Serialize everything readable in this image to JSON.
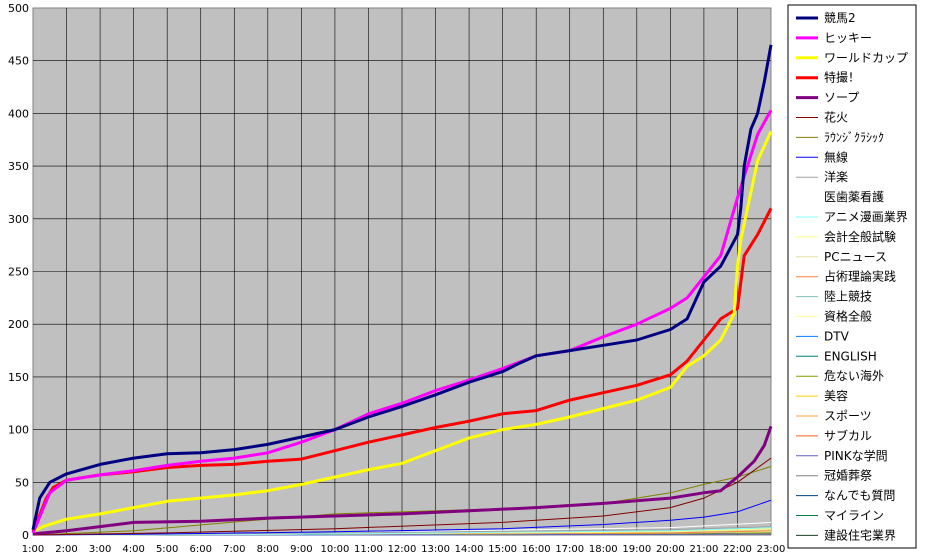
{
  "chart_data": {
    "type": "line",
    "title": "",
    "xlabel": "",
    "ylabel": "",
    "ylim": [
      0,
      500
    ],
    "yticks": [
      0,
      50,
      100,
      150,
      200,
      250,
      300,
      350,
      400,
      450,
      500
    ],
    "xlim": [
      1,
      23
    ],
    "xticks": [
      "1:00",
      "2:00",
      "3:00",
      "4:00",
      "5:00",
      "6:00",
      "7:00",
      "8:00",
      "9:00",
      "10:00",
      "11:00",
      "12:00",
      "13:00",
      "14:00",
      "15:00",
      "16:00",
      "17:00",
      "18:00",
      "19:00",
      "20:00",
      "21:00",
      "22:00",
      "23:00"
    ],
    "grid": true,
    "plot_background": "#c0c0c0",
    "legend_position": "right",
    "series": [
      {
        "name": "競馬2",
        "color": "#000080",
        "bold": true,
        "points": [
          [
            1,
            5
          ],
          [
            1.2,
            35
          ],
          [
            1.5,
            50
          ],
          [
            2,
            58
          ],
          [
            3,
            67
          ],
          [
            4,
            73
          ],
          [
            5,
            77
          ],
          [
            6,
            78
          ],
          [
            7,
            81
          ],
          [
            8,
            86
          ],
          [
            9,
            93
          ],
          [
            10,
            100
          ],
          [
            11,
            112
          ],
          [
            12,
            122
          ],
          [
            13,
            133
          ],
          [
            14,
            145
          ],
          [
            15,
            155
          ],
          [
            15.5,
            163
          ],
          [
            16,
            170
          ],
          [
            17,
            175
          ],
          [
            18,
            180
          ],
          [
            19,
            185
          ],
          [
            20,
            195
          ],
          [
            20.5,
            205
          ],
          [
            21,
            240
          ],
          [
            21.5,
            255
          ],
          [
            22,
            285
          ],
          [
            22.1,
            310
          ],
          [
            22.2,
            350
          ],
          [
            22.4,
            385
          ],
          [
            22.6,
            400
          ],
          [
            22.8,
            430
          ],
          [
            23,
            465
          ]
        ]
      },
      {
        "name": "ヒッキー",
        "color": "#ff00ff",
        "bold": true,
        "points": [
          [
            1,
            2
          ],
          [
            1.5,
            40
          ],
          [
            2,
            52
          ],
          [
            3,
            57
          ],
          [
            4,
            61
          ],
          [
            5,
            66
          ],
          [
            6,
            70
          ],
          [
            7,
            73
          ],
          [
            8,
            78
          ],
          [
            9,
            88
          ],
          [
            10,
            100
          ],
          [
            11,
            115
          ],
          [
            12,
            125
          ],
          [
            13,
            137
          ],
          [
            14,
            147
          ],
          [
            15,
            158
          ],
          [
            16,
            170
          ],
          [
            17,
            175
          ],
          [
            18,
            188
          ],
          [
            19,
            200
          ],
          [
            20,
            215
          ],
          [
            20.5,
            225
          ],
          [
            21,
            245
          ],
          [
            21.5,
            265
          ],
          [
            22,
            320
          ],
          [
            22.3,
            350
          ],
          [
            22.6,
            380
          ],
          [
            23,
            403
          ]
        ]
      },
      {
        "name": "ワールドカップ",
        "color": "#ffff00",
        "bold": true,
        "points": [
          [
            1,
            3
          ],
          [
            1.3,
            8
          ],
          [
            2,
            15
          ],
          [
            3,
            20
          ],
          [
            4,
            26
          ],
          [
            5,
            32
          ],
          [
            6,
            35
          ],
          [
            7,
            38
          ],
          [
            8,
            42
          ],
          [
            9,
            48
          ],
          [
            10,
            55
          ],
          [
            11,
            62
          ],
          [
            12,
            68
          ],
          [
            13,
            80
          ],
          [
            14,
            92
          ],
          [
            15,
            100
          ],
          [
            16,
            105
          ],
          [
            17,
            112
          ],
          [
            18,
            120
          ],
          [
            19,
            128
          ],
          [
            20,
            140
          ],
          [
            20.5,
            160
          ],
          [
            21,
            170
          ],
          [
            21.5,
            185
          ],
          [
            21.9,
            210
          ],
          [
            22,
            255
          ],
          [
            22.1,
            280
          ],
          [
            22.3,
            310
          ],
          [
            22.6,
            355
          ],
          [
            23,
            383
          ]
        ]
      },
      {
        "name": "特撮！",
        "color": "#ff0000",
        "bold": true,
        "points": [
          [
            1,
            3
          ],
          [
            1.4,
            35
          ],
          [
            1.6,
            45
          ],
          [
            2,
            52
          ],
          [
            3,
            57
          ],
          [
            4,
            60
          ],
          [
            5,
            64
          ],
          [
            6,
            66
          ],
          [
            7,
            67
          ],
          [
            8,
            70
          ],
          [
            9,
            72
          ],
          [
            10,
            80
          ],
          [
            11,
            88
          ],
          [
            12,
            95
          ],
          [
            13,
            102
          ],
          [
            14,
            108
          ],
          [
            15,
            115
          ],
          [
            16,
            118
          ],
          [
            17,
            128
          ],
          [
            18,
            135
          ],
          [
            19,
            142
          ],
          [
            20,
            152
          ],
          [
            20.5,
            165
          ],
          [
            21,
            185
          ],
          [
            21.5,
            205
          ],
          [
            22,
            215
          ],
          [
            22.2,
            265
          ],
          [
            22.6,
            285
          ],
          [
            23,
            310
          ]
        ]
      },
      {
        "name": "ソープ",
        "color": "#800080",
        "bold": true,
        "points": [
          [
            1,
            1
          ],
          [
            2,
            4
          ],
          [
            3,
            8
          ],
          [
            4,
            12
          ],
          [
            6,
            13
          ],
          [
            8,
            16
          ],
          [
            10,
            18
          ],
          [
            12,
            20
          ],
          [
            14,
            23
          ],
          [
            16,
            26
          ],
          [
            18,
            30
          ],
          [
            20,
            35
          ],
          [
            21,
            40
          ],
          [
            21.5,
            42
          ],
          [
            22,
            55
          ],
          [
            22.5,
            70
          ],
          [
            22.8,
            85
          ],
          [
            23,
            103
          ]
        ]
      },
      {
        "name": "花火",
        "color": "#800000",
        "bold": false,
        "points": [
          [
            1,
            0
          ],
          [
            5,
            2
          ],
          [
            10,
            6
          ],
          [
            15,
            12
          ],
          [
            18,
            18
          ],
          [
            20,
            26
          ],
          [
            21,
            35
          ],
          [
            22,
            50
          ],
          [
            23,
            73
          ]
        ]
      },
      {
        "name": "ﾗｳﾝｼﾞｸﾗｼｯｸ",
        "color": "#808000",
        "bold": false,
        "points": [
          [
            1,
            0
          ],
          [
            4,
            4
          ],
          [
            8,
            15
          ],
          [
            10,
            20
          ],
          [
            15,
            25
          ],
          [
            18,
            30
          ],
          [
            20,
            40
          ],
          [
            21,
            48
          ],
          [
            22,
            55
          ],
          [
            23,
            65
          ]
        ]
      },
      {
        "name": "無線",
        "color": "#0000ff",
        "bold": false,
        "points": [
          [
            1,
            0
          ],
          [
            5,
            1
          ],
          [
            10,
            3
          ],
          [
            15,
            6
          ],
          [
            18,
            10
          ],
          [
            20,
            14
          ],
          [
            21,
            17
          ],
          [
            22,
            22
          ],
          [
            23,
            33
          ]
        ]
      },
      {
        "name": "洋楽",
        "color": "#a0a0a0",
        "bold": false,
        "points": [
          [
            1,
            0
          ],
          [
            10,
            2
          ],
          [
            20,
            5
          ],
          [
            23,
            8
          ]
        ]
      },
      {
        "name": "医歯薬看護",
        "color": "#ffffff",
        "bold": false,
        "points": [
          [
            1,
            0
          ],
          [
            10,
            2
          ],
          [
            20,
            7
          ],
          [
            23,
            12
          ]
        ]
      },
      {
        "name": "アニメ漫画業界",
        "color": "#80ffff",
        "bold": false,
        "points": [
          [
            1,
            0
          ],
          [
            10,
            1
          ],
          [
            20,
            4
          ],
          [
            23,
            7
          ]
        ]
      },
      {
        "name": "会計全般試験",
        "color": "#ffff80",
        "bold": false,
        "points": [
          [
            1,
            0
          ],
          [
            10,
            1
          ],
          [
            20,
            3
          ],
          [
            23,
            6
          ]
        ]
      },
      {
        "name": "PCニュース",
        "color": "#e0e0a0",
        "bold": false,
        "points": [
          [
            1,
            0
          ],
          [
            10,
            1
          ],
          [
            20,
            3
          ],
          [
            23,
            5
          ]
        ]
      },
      {
        "name": "占術理論実践",
        "color": "#ff8040",
        "bold": false,
        "points": [
          [
            1,
            0
          ],
          [
            10,
            1
          ],
          [
            20,
            2
          ],
          [
            23,
            4
          ]
        ]
      },
      {
        "name": "陸上競技",
        "color": "#80c0c0",
        "bold": false,
        "points": [
          [
            1,
            0
          ],
          [
            10,
            1
          ],
          [
            20,
            2
          ],
          [
            23,
            4
          ]
        ]
      },
      {
        "name": "資格全般",
        "color": "#ffffa0",
        "bold": false,
        "points": [
          [
            1,
            0
          ],
          [
            10,
            1
          ],
          [
            20,
            2
          ],
          [
            23,
            3
          ]
        ]
      },
      {
        "name": "DTV",
        "color": "#0080ff",
        "bold": false,
        "points": [
          [
            1,
            0
          ],
          [
            12,
            1
          ],
          [
            23,
            3
          ]
        ]
      },
      {
        "name": "ENGLISH",
        "color": "#008080",
        "bold": false,
        "points": [
          [
            1,
            0
          ],
          [
            12,
            1
          ],
          [
            23,
            3
          ]
        ]
      },
      {
        "name": "危ない海外",
        "color": "#80a000",
        "bold": false,
        "points": [
          [
            1,
            0
          ],
          [
            12,
            1
          ],
          [
            23,
            2
          ]
        ]
      },
      {
        "name": "美容",
        "color": "#ffd000",
        "bold": false,
        "points": [
          [
            1,
            0
          ],
          [
            12,
            1
          ],
          [
            23,
            2
          ]
        ]
      },
      {
        "name": "スポーツ",
        "color": "#ffa040",
        "bold": false,
        "points": [
          [
            1,
            0
          ],
          [
            12,
            1
          ],
          [
            23,
            2
          ]
        ]
      },
      {
        "name": "サブカル",
        "color": "#ff6020",
        "bold": false,
        "points": [
          [
            1,
            0
          ],
          [
            12,
            1
          ],
          [
            23,
            2
          ]
        ]
      },
      {
        "name": "PINKな学問",
        "color": "#6060c0",
        "bold": false,
        "points": [
          [
            1,
            0
          ],
          [
            12,
            0
          ],
          [
            23,
            1
          ]
        ]
      },
      {
        "name": "冠婚葬祭",
        "color": "#808080",
        "bold": false,
        "points": [
          [
            1,
            0
          ],
          [
            12,
            0
          ],
          [
            23,
            1
          ]
        ]
      },
      {
        "name": "なんでも質問",
        "color": "#004080",
        "bold": false,
        "points": [
          [
            1,
            0
          ],
          [
            12,
            0
          ],
          [
            23,
            1
          ]
        ]
      },
      {
        "name": "マイライン",
        "color": "#008040",
        "bold": false,
        "points": [
          [
            1,
            0
          ],
          [
            12,
            0
          ],
          [
            23,
            1
          ]
        ]
      },
      {
        "name": "建設住宅業界",
        "color": "#204020",
        "bold": false,
        "points": [
          [
            1,
            0
          ],
          [
            12,
            0
          ],
          [
            23,
            1
          ]
        ]
      }
    ]
  }
}
